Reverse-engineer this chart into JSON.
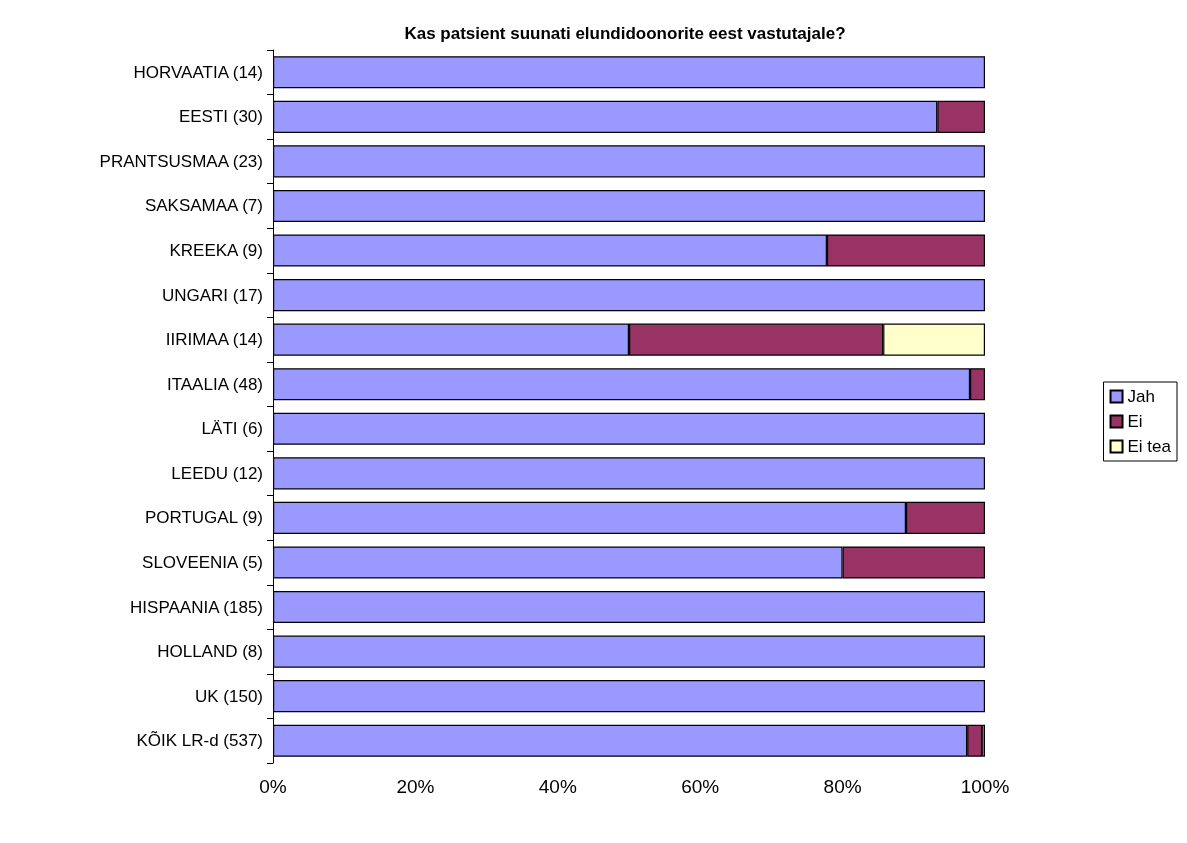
{
  "chart_data": {
    "type": "bar",
    "orientation": "horizontal",
    "stacked": true,
    "title": "Kas patsient suunati elundidoonorite eest vastutajale?",
    "categories": [
      "HORVAATIA (14)",
      "EESTI (30)",
      "PRANTSUSMAA (23)",
      "SAKSAMAA (7)",
      "KREEKA (9)",
      "UNGARI (17)",
      "IIRIMAA (14)",
      "ITAALIA (48)",
      "LÄTI (6)",
      "LEEDU (12)",
      "PORTUGAL (9)",
      "SLOVEENIA (5)",
      "HISPAANIA (185)",
      "HOLLAND (8)",
      "UK (150)",
      "KÕIK LR-d (537)"
    ],
    "series": [
      {
        "name": "Jah",
        "color": "#9999ff",
        "values": [
          100,
          93.3,
          100,
          100,
          77.8,
          100,
          50,
          97.9,
          100,
          100,
          88.9,
          80,
          100,
          100,
          100,
          97.5
        ]
      },
      {
        "name": "Ei",
        "color": "#993366",
        "values": [
          0,
          6.7,
          0,
          0,
          22.2,
          0,
          35.7,
          2.1,
          0,
          0,
          11.1,
          20,
          0,
          0,
          0,
          2.1
        ]
      },
      {
        "name": "Ei tea",
        "color": "#ffffcc",
        "values": [
          0,
          0,
          0,
          0,
          0,
          0,
          14.3,
          0,
          0,
          0,
          0,
          0,
          0,
          0,
          0,
          0.4
        ]
      }
    ],
    "xlim": [
      0,
      100
    ],
    "xticks": [
      {
        "value": 0,
        "label": "0%"
      },
      {
        "value": 20,
        "label": "20%"
      },
      {
        "value": 40,
        "label": "40%"
      },
      {
        "value": 60,
        "label": "60%"
      },
      {
        "value": 80,
        "label": "80%"
      },
      {
        "value": 100,
        "label": "100%"
      }
    ],
    "grid": false,
    "legend": "right"
  }
}
